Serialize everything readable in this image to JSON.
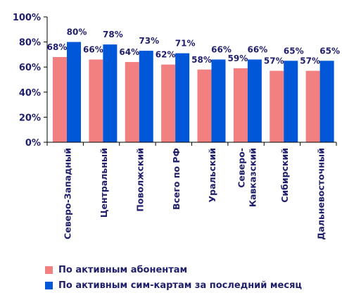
{
  "chart_data": {
    "type": "bar",
    "categories": [
      "Северо-Западный",
      "Центральный",
      "Поволжский",
      "Всего по РФ",
      "Уральский",
      "Северо-\nКавказский",
      "Сибирский",
      "Дальневосточный"
    ],
    "series": [
      {
        "name": "По активным абонентам",
        "values": [
          68,
          66,
          64,
          62,
          58,
          59,
          57,
          57
        ],
        "color": "#f28080"
      },
      {
        "name": "По активным сим-картам за последний месяц",
        "values": [
          80,
          78,
          73,
          71,
          66,
          66,
          65,
          65
        ],
        "color": "#0057d8"
      }
    ],
    "ylim": [
      0,
      100
    ],
    "yticks": [
      "0%",
      "20%",
      "40%",
      "60%",
      "80%",
      "100%"
    ],
    "value_suffix": "%",
    "label_colors": {
      "series0": "#1f1f6b",
      "series1": "#1f1f6b"
    },
    "grid": false,
    "legend_position": "bottom-left"
  }
}
